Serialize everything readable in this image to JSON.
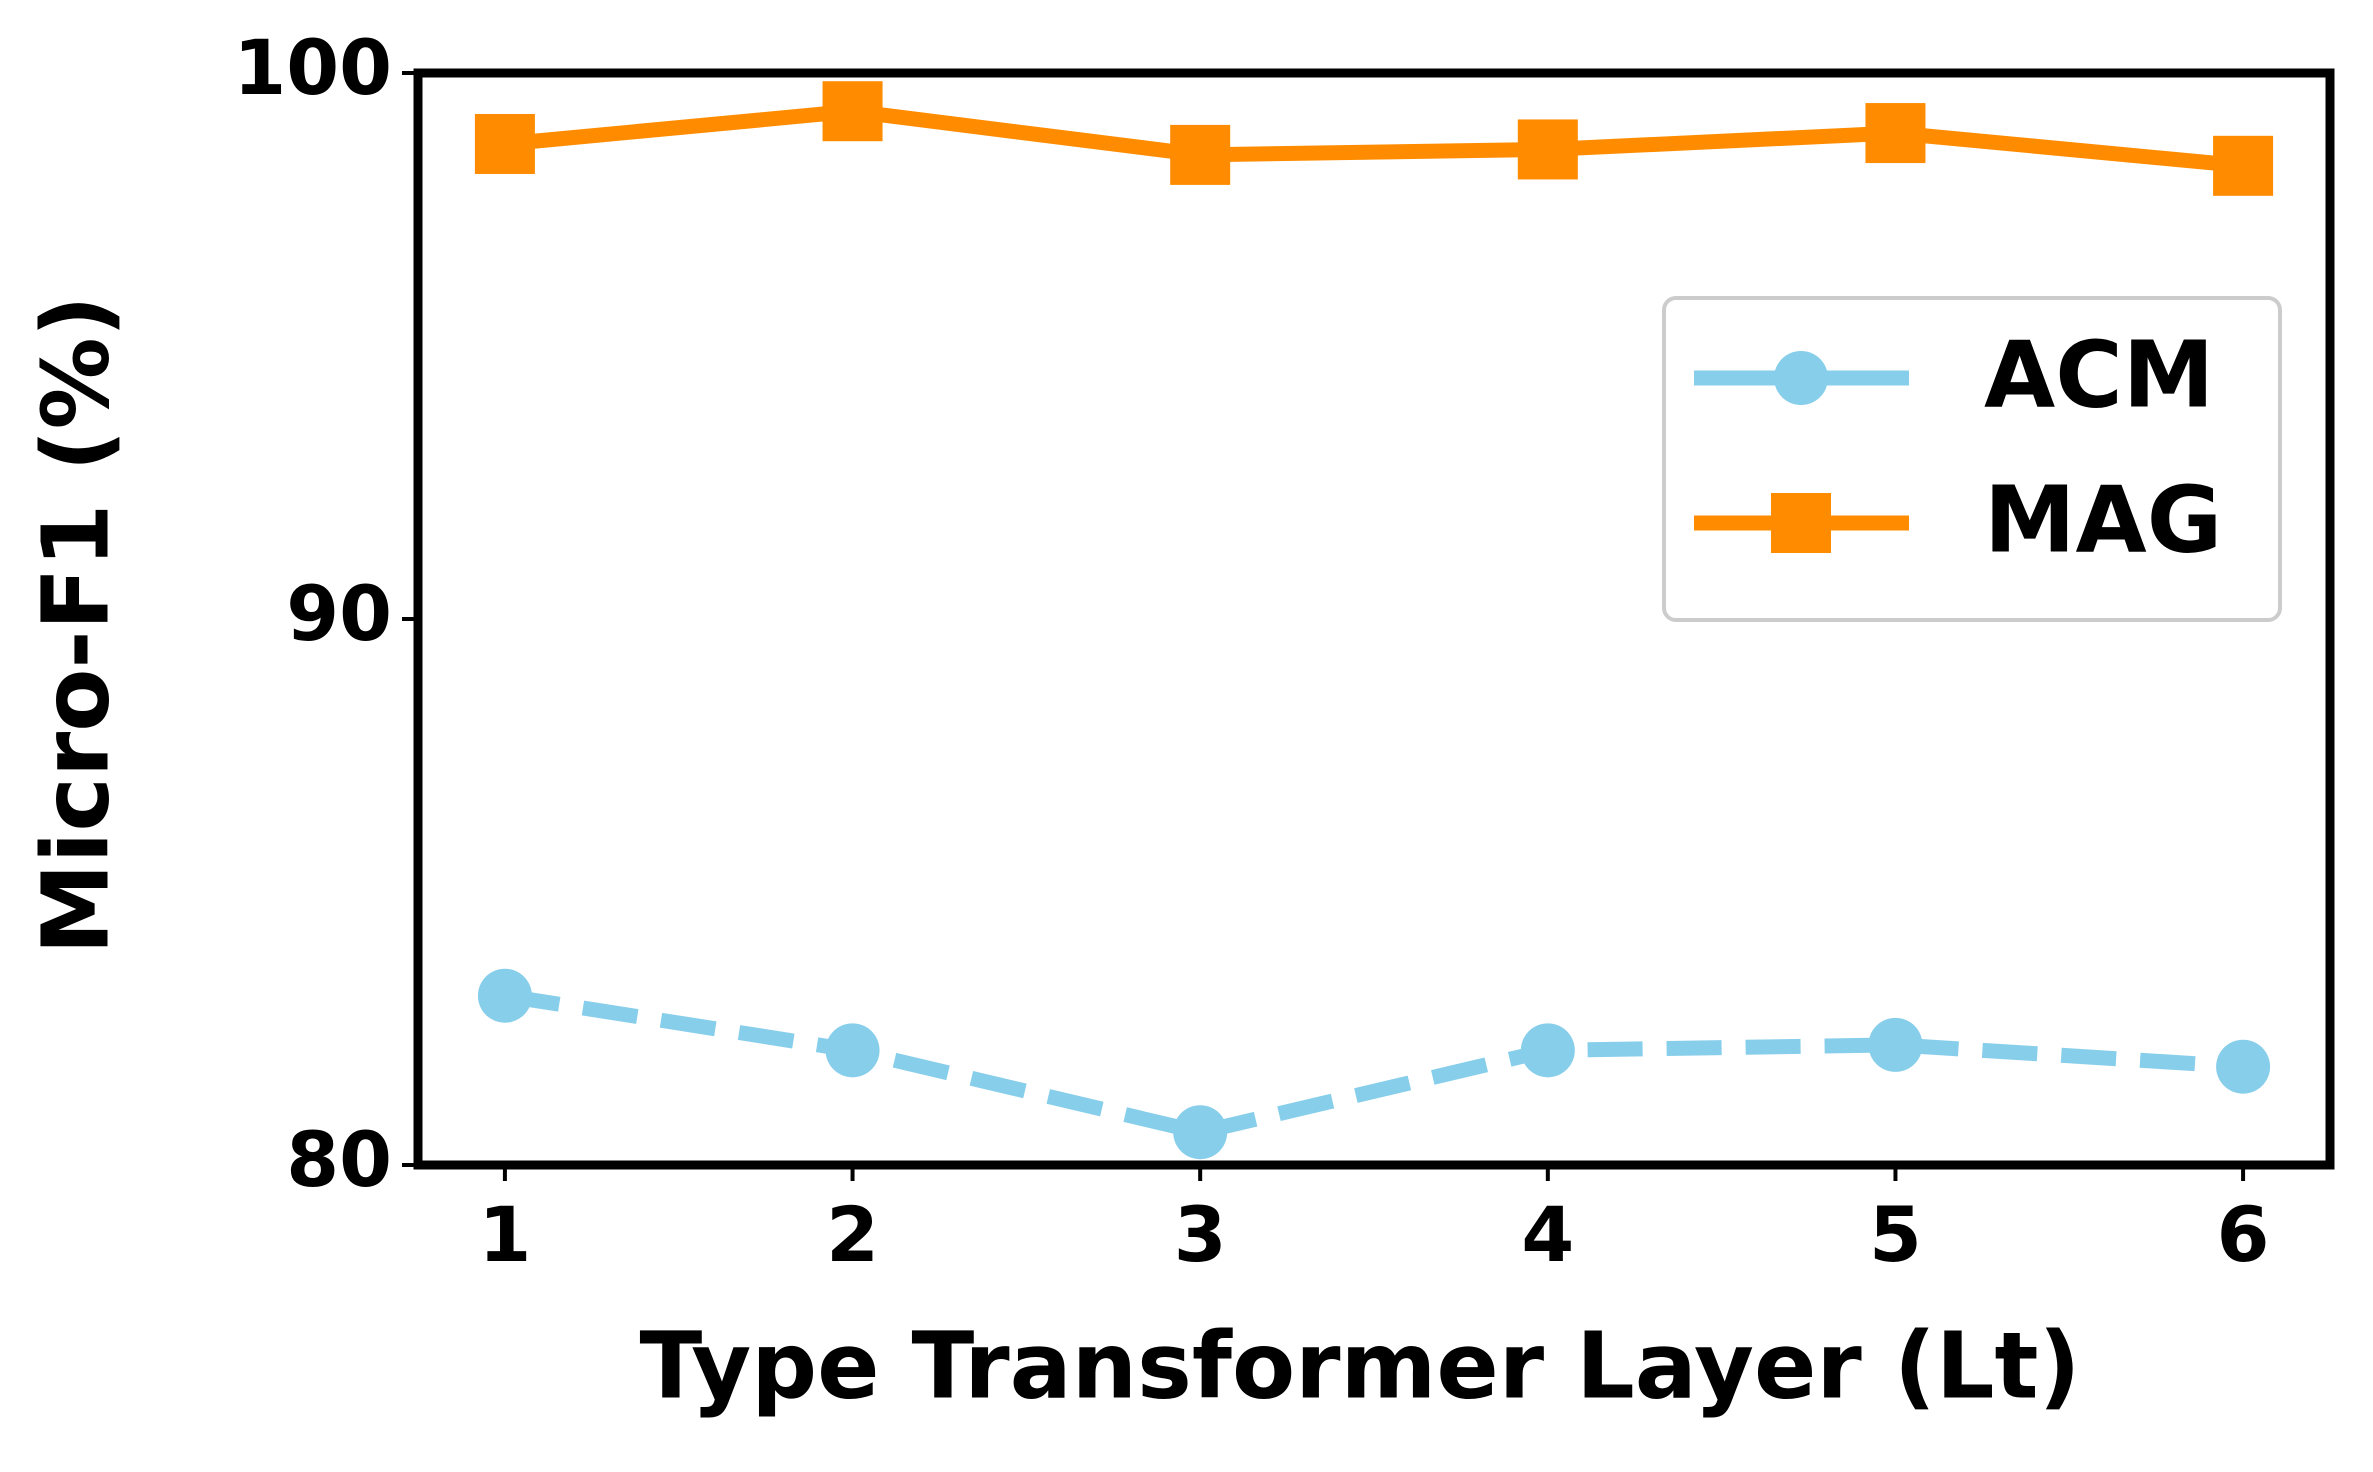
{
  "chart_data": {
    "type": "line",
    "x_label": "Type Transformer Layer (Lt)",
    "y_label": "Micro-F1 (%)",
    "x": [
      1,
      2,
      3,
      4,
      5,
      6
    ],
    "series": [
      {
        "name": "ACM",
        "color": "#87ceeb",
        "dash": true,
        "marker": "circle",
        "values": [
          83.1,
          82.1,
          80.6,
          82.1,
          82.2,
          81.8
        ]
      },
      {
        "name": "MAG",
        "color": "#ff8c00",
        "dash": false,
        "marker": "square",
        "values": [
          98.7,
          99.3,
          98.5,
          98.6,
          98.9,
          98.3
        ]
      }
    ],
    "xlim": [
      0.75,
      6.25
    ],
    "xticks": [
      1,
      2,
      3,
      4,
      5,
      6
    ],
    "ylim": [
      80,
      100
    ],
    "yticks": [
      80,
      90,
      100
    ],
    "legend": "upper right"
  }
}
